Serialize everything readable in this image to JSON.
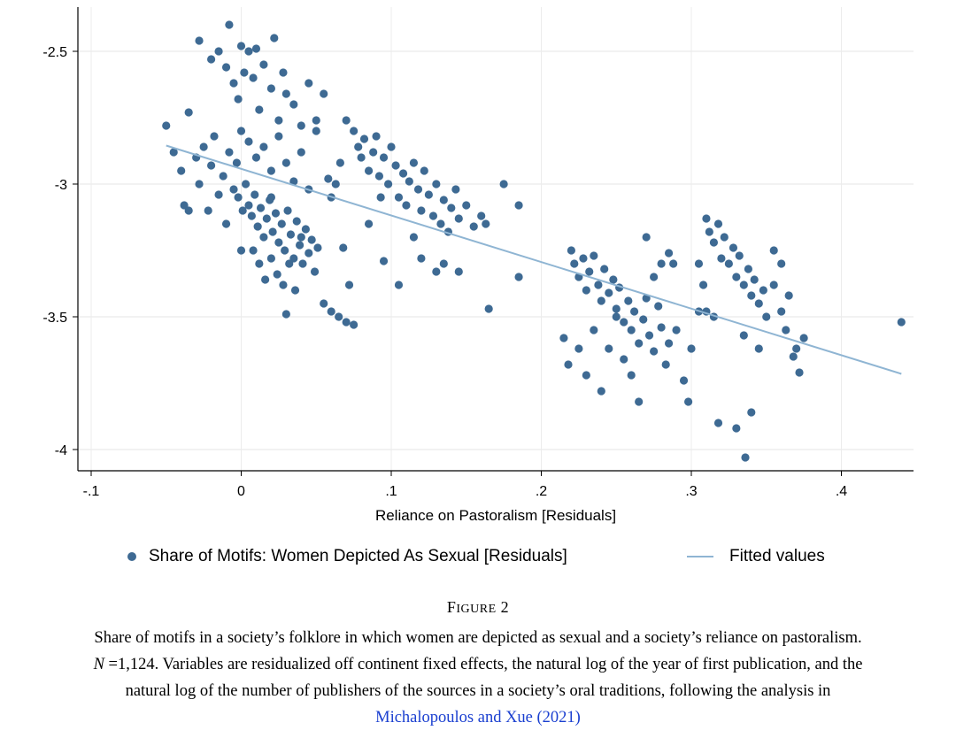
{
  "chart_data": {
    "type": "scatter",
    "title": "",
    "xlabel": "Reliance on Pastoralism [Residuals]",
    "ylabel": "",
    "xlim": [
      -0.1,
      0.45
    ],
    "ylim": [
      -4.1,
      -2.35
    ],
    "x_ticks": [
      -0.1,
      0,
      0.1,
      0.2,
      0.3,
      0.4
    ],
    "x_tick_labels": [
      "-.1",
      "0",
      ".1",
      ".2",
      ".3",
      ".4"
    ],
    "y_ticks": [
      -2.5,
      -3,
      -3.5,
      -4
    ],
    "y_tick_labels": [
      "-2.5",
      "-3",
      "-3.5",
      "-4"
    ],
    "grid": true,
    "legend_position": "bottom",
    "series": [
      {
        "name": "Share of Motifs: Women Depicted As Sexual [Residuals]",
        "kind": "scatter",
        "color": "#3e6a93",
        "points": [
          [
            -0.05,
            -2.78
          ],
          [
            -0.045,
            -2.88
          ],
          [
            -0.04,
            -2.95
          ],
          [
            -0.038,
            -3.08
          ],
          [
            -0.035,
            -2.73
          ],
          [
            -0.03,
            -2.9
          ],
          [
            -0.028,
            -3.0
          ],
          [
            -0.025,
            -2.86
          ],
          [
            -0.022,
            -3.1
          ],
          [
            -0.02,
            -2.93
          ],
          [
            -0.018,
            -2.82
          ],
          [
            -0.015,
            -3.04
          ],
          [
            -0.012,
            -2.97
          ],
          [
            -0.01,
            -3.15
          ],
          [
            -0.008,
            -2.88
          ],
          [
            -0.005,
            -3.02
          ],
          [
            -0.003,
            -2.92
          ],
          [
            -0.028,
            -2.46
          ],
          [
            -0.02,
            -2.53
          ],
          [
            -0.015,
            -2.5
          ],
          [
            -0.01,
            -2.56
          ],
          [
            -0.008,
            -2.4
          ],
          [
            -0.005,
            -2.62
          ],
          [
            -0.002,
            -2.68
          ],
          [
            0.0,
            -2.48
          ],
          [
            0.002,
            -2.58
          ],
          [
            0.005,
            -2.5
          ],
          [
            0.008,
            -2.6
          ],
          [
            0.01,
            -2.49
          ],
          [
            0.012,
            -2.72
          ],
          [
            0.015,
            -2.55
          ],
          [
            0.02,
            -2.64
          ],
          [
            0.022,
            -2.45
          ],
          [
            0.025,
            -2.76
          ],
          [
            0.028,
            -2.58
          ],
          [
            0.03,
            -2.66
          ],
          [
            0.035,
            -2.7
          ],
          [
            0.04,
            -2.78
          ],
          [
            0.045,
            -2.62
          ],
          [
            0.05,
            -2.8
          ],
          [
            0.055,
            -2.66
          ],
          [
            0.0,
            -2.8
          ],
          [
            0.005,
            -2.84
          ],
          [
            0.01,
            -2.9
          ],
          [
            0.015,
            -2.86
          ],
          [
            0.02,
            -2.95
          ],
          [
            0.025,
            -2.82
          ],
          [
            0.03,
            -2.92
          ],
          [
            0.035,
            -2.99
          ],
          [
            0.04,
            -2.88
          ],
          [
            0.045,
            -3.02
          ],
          [
            0.05,
            -2.76
          ],
          [
            -0.002,
            -3.05
          ],
          [
            0.001,
            -3.1
          ],
          [
            0.003,
            -3.0
          ],
          [
            0.005,
            -3.08
          ],
          [
            0.007,
            -3.12
          ],
          [
            0.009,
            -3.04
          ],
          [
            0.011,
            -3.16
          ],
          [
            0.013,
            -3.09
          ],
          [
            0.015,
            -3.2
          ],
          [
            0.017,
            -3.13
          ],
          [
            0.019,
            -3.06
          ],
          [
            0.021,
            -3.18
          ],
          [
            0.023,
            -3.11
          ],
          [
            0.025,
            -3.22
          ],
          [
            0.027,
            -3.15
          ],
          [
            0.029,
            -3.25
          ],
          [
            0.031,
            -3.1
          ],
          [
            0.033,
            -3.19
          ],
          [
            0.035,
            -3.28
          ],
          [
            0.037,
            -3.14
          ],
          [
            0.039,
            -3.23
          ],
          [
            0.041,
            -3.3
          ],
          [
            0.043,
            -3.17
          ],
          [
            0.045,
            -3.26
          ],
          [
            0.047,
            -3.21
          ],
          [
            0.049,
            -3.33
          ],
          [
            0.051,
            -3.24
          ],
          [
            0.008,
            -3.25
          ],
          [
            0.012,
            -3.3
          ],
          [
            0.016,
            -3.36
          ],
          [
            0.02,
            -3.28
          ],
          [
            0.024,
            -3.34
          ],
          [
            0.028,
            -3.38
          ],
          [
            0.032,
            -3.3
          ],
          [
            0.036,
            -3.4
          ],
          [
            0.03,
            -3.49
          ],
          [
            0.055,
            -3.45
          ],
          [
            0.06,
            -3.48
          ],
          [
            0.065,
            -3.5
          ],
          [
            0.07,
            -3.52
          ],
          [
            0.075,
            -3.53
          ],
          [
            0.072,
            -3.38
          ],
          [
            0.068,
            -3.24
          ],
          [
            0.058,
            -2.98
          ],
          [
            0.063,
            -3.0
          ],
          [
            0.07,
            -2.76
          ],
          [
            0.075,
            -2.8
          ],
          [
            0.078,
            -2.86
          ],
          [
            0.08,
            -2.9
          ],
          [
            0.082,
            -2.83
          ],
          [
            0.085,
            -2.95
          ],
          [
            0.088,
            -2.88
          ],
          [
            0.09,
            -2.82
          ],
          [
            0.092,
            -2.97
          ],
          [
            0.095,
            -2.9
          ],
          [
            0.098,
            -3.0
          ],
          [
            0.1,
            -2.86
          ],
          [
            0.103,
            -2.93
          ],
          [
            0.105,
            -3.05
          ],
          [
            0.108,
            -2.96
          ],
          [
            0.11,
            -3.08
          ],
          [
            0.112,
            -2.99
          ],
          [
            0.115,
            -2.92
          ],
          [
            0.118,
            -3.02
          ],
          [
            0.12,
            -3.1
          ],
          [
            0.122,
            -2.95
          ],
          [
            0.125,
            -3.04
          ],
          [
            0.128,
            -3.12
          ],
          [
            0.13,
            -3.0
          ],
          [
            0.133,
            -3.15
          ],
          [
            0.135,
            -3.06
          ],
          [
            0.138,
            -3.18
          ],
          [
            0.14,
            -3.09
          ],
          [
            0.143,
            -3.02
          ],
          [
            0.145,
            -3.13
          ],
          [
            0.15,
            -3.08
          ],
          [
            0.155,
            -3.16
          ],
          [
            0.16,
            -3.12
          ],
          [
            0.163,
            -3.15
          ],
          [
            0.165,
            -3.47
          ],
          [
            0.175,
            -3.0
          ],
          [
            0.185,
            -3.08
          ],
          [
            0.185,
            -3.35
          ],
          [
            0.12,
            -3.28
          ],
          [
            0.095,
            -3.29
          ],
          [
            0.105,
            -3.38
          ],
          [
            0.135,
            -3.3
          ],
          [
            0.13,
            -3.33
          ],
          [
            0.145,
            -3.33
          ],
          [
            0.22,
            -3.25
          ],
          [
            0.222,
            -3.3
          ],
          [
            0.225,
            -3.35
          ],
          [
            0.228,
            -3.28
          ],
          [
            0.23,
            -3.4
          ],
          [
            0.232,
            -3.33
          ],
          [
            0.235,
            -3.27
          ],
          [
            0.238,
            -3.38
          ],
          [
            0.24,
            -3.44
          ],
          [
            0.242,
            -3.32
          ],
          [
            0.245,
            -3.41
          ],
          [
            0.248,
            -3.36
          ],
          [
            0.25,
            -3.47
          ],
          [
            0.252,
            -3.39
          ],
          [
            0.255,
            -3.52
          ],
          [
            0.258,
            -3.44
          ],
          [
            0.26,
            -3.55
          ],
          [
            0.262,
            -3.48
          ],
          [
            0.265,
            -3.6
          ],
          [
            0.268,
            -3.51
          ],
          [
            0.27,
            -3.43
          ],
          [
            0.272,
            -3.57
          ],
          [
            0.275,
            -3.63
          ],
          [
            0.278,
            -3.46
          ],
          [
            0.28,
            -3.54
          ],
          [
            0.283,
            -3.68
          ],
          [
            0.285,
            -3.6
          ],
          [
            0.288,
            -3.3
          ],
          [
            0.29,
            -3.55
          ],
          [
            0.295,
            -3.74
          ],
          [
            0.298,
            -3.82
          ],
          [
            0.3,
            -3.62
          ],
          [
            0.305,
            -3.48
          ],
          [
            0.215,
            -3.58
          ],
          [
            0.218,
            -3.68
          ],
          [
            0.225,
            -3.62
          ],
          [
            0.23,
            -3.72
          ],
          [
            0.235,
            -3.55
          ],
          [
            0.24,
            -3.78
          ],
          [
            0.245,
            -3.62
          ],
          [
            0.25,
            -3.5
          ],
          [
            0.255,
            -3.66
          ],
          [
            0.26,
            -3.72
          ],
          [
            0.265,
            -3.82
          ],
          [
            0.27,
            -3.2
          ],
          [
            0.275,
            -3.35
          ],
          [
            0.28,
            -3.3
          ],
          [
            0.285,
            -3.26
          ],
          [
            0.31,
            -3.13
          ],
          [
            0.312,
            -3.18
          ],
          [
            0.315,
            -3.22
          ],
          [
            0.318,
            -3.15
          ],
          [
            0.32,
            -3.28
          ],
          [
            0.322,
            -3.2
          ],
          [
            0.325,
            -3.3
          ],
          [
            0.328,
            -3.24
          ],
          [
            0.33,
            -3.35
          ],
          [
            0.332,
            -3.27
          ],
          [
            0.335,
            -3.38
          ],
          [
            0.338,
            -3.32
          ],
          [
            0.34,
            -3.42
          ],
          [
            0.342,
            -3.36
          ],
          [
            0.345,
            -3.45
          ],
          [
            0.348,
            -3.4
          ],
          [
            0.35,
            -3.5
          ],
          [
            0.355,
            -3.38
          ],
          [
            0.36,
            -3.48
          ],
          [
            0.363,
            -3.55
          ],
          [
            0.365,
            -3.42
          ],
          [
            0.368,
            -3.65
          ],
          [
            0.37,
            -3.62
          ],
          [
            0.372,
            -3.71
          ],
          [
            0.375,
            -3.58
          ],
          [
            0.305,
            -3.3
          ],
          [
            0.308,
            -3.38
          ],
          [
            0.31,
            -3.48
          ],
          [
            0.315,
            -3.5
          ],
          [
            0.318,
            -3.9
          ],
          [
            0.33,
            -3.92
          ],
          [
            0.335,
            -3.57
          ],
          [
            0.34,
            -3.86
          ],
          [
            0.345,
            -3.62
          ],
          [
            0.355,
            -3.25
          ],
          [
            0.36,
            -3.3
          ],
          [
            0.336,
            -4.03
          ],
          [
            0.44,
            -3.52
          ],
          [
            -0.035,
            -3.1
          ],
          [
            0.0,
            -3.25
          ],
          [
            0.02,
            -3.05
          ],
          [
            0.04,
            -3.2
          ],
          [
            0.06,
            -3.05
          ],
          [
            0.066,
            -2.92
          ],
          [
            0.085,
            -3.15
          ],
          [
            0.093,
            -3.05
          ],
          [
            0.115,
            -3.2
          ]
        ]
      },
      {
        "name": "Fitted values",
        "kind": "line",
        "color": "#8fb5d3",
        "x": [
          -0.05,
          0.44
        ],
        "y": [
          -2.855,
          -3.715
        ]
      }
    ]
  },
  "legend": {
    "scatter_label": "Share of Motifs: Women Depicted As Sexual [Residuals]",
    "line_label": "Fitted values"
  },
  "caption": {
    "figure_word": "F",
    "figure_word_rest": "IGURE",
    "figure_number": "2",
    "line1": "Share of motifs in a society’s folklore in which women are depicted as sexual and a society’s reliance on pastoralism.",
    "line2": "N =1,124. Variables are residualized off continent fixed effects, the natural log of the year of first publication, and the",
    "line3": "natural log of the number of publishers of the sources in a society’s oral traditions, following the analysis in",
    "citation": "Michalopoulos and Xue (2021)"
  }
}
